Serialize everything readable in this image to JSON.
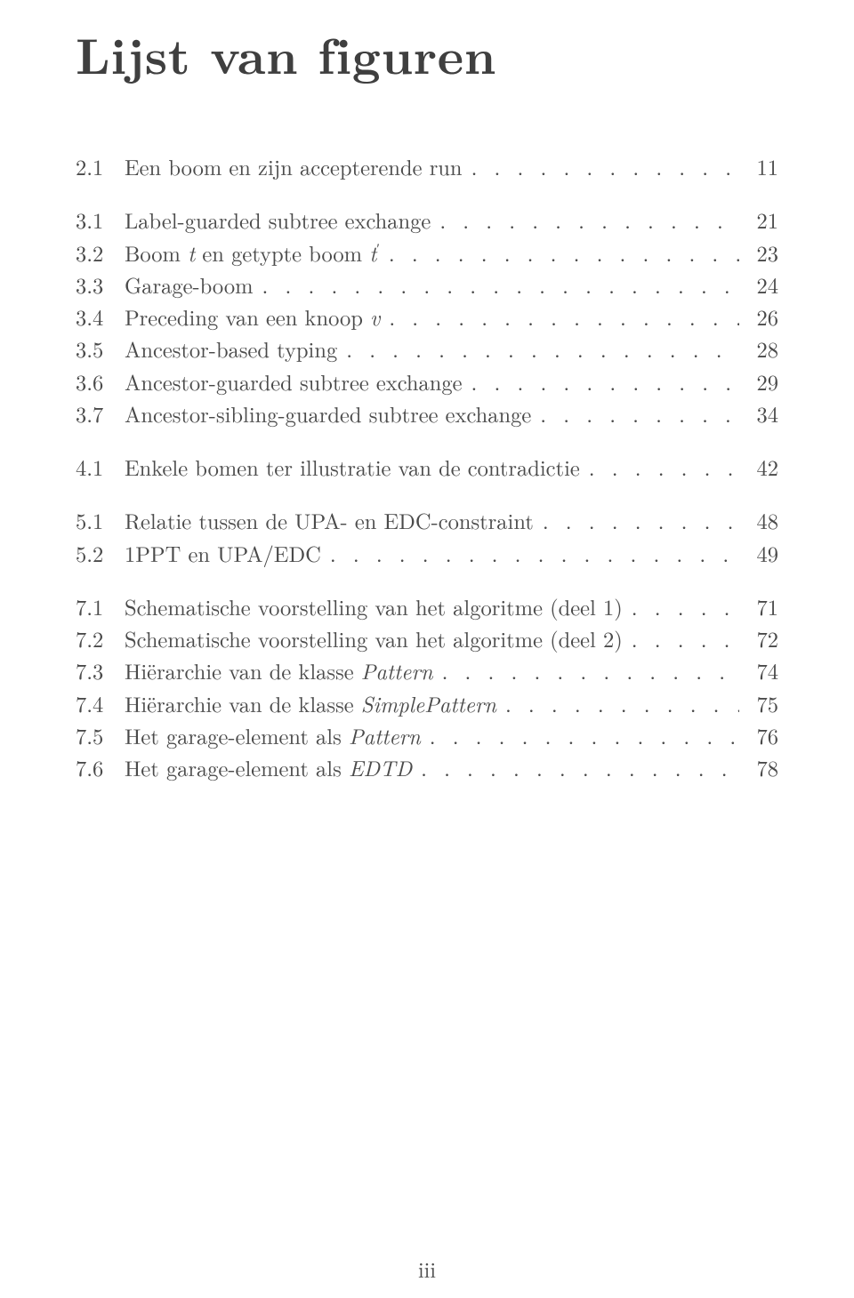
{
  "title": "Lijst van figuren",
  "page_number": "iii",
  "dot_fill": ". . . . . . . . . . . . . . . . . . . . . . . . . . . . . . . . . . . . . . . . . . . . . . . . . . . . . . . . . . . .",
  "groups": [
    [
      {
        "num": "2.1",
        "label_html": "Een boom en zijn accepterende run",
        "page": "11"
      }
    ],
    [
      {
        "num": "3.1",
        "label_html": "Label-guarded subtree exchange",
        "page": "21"
      },
      {
        "num": "3.2",
        "label_html": "Boom <span class=\"italic\">t</span> en getypte boom <span class=\"italic\">t</span><span class=\"sup\">′</span>",
        "page": "23"
      },
      {
        "num": "3.3",
        "label_html": "Garage-boom",
        "page": "24"
      },
      {
        "num": "3.4",
        "label_html": "Preceding van een knoop <span class=\"italic\">v</span>",
        "page": "26"
      },
      {
        "num": "3.5",
        "label_html": "Ancestor-based typing",
        "page": "28"
      },
      {
        "num": "3.6",
        "label_html": "Ancestor-guarded subtree exchange",
        "page": "29"
      },
      {
        "num": "3.7",
        "label_html": "Ancestor-sibling-guarded subtree exchange",
        "page": "34"
      }
    ],
    [
      {
        "num": "4.1",
        "label_html": "Enkele bomen ter illustratie van de contradictie",
        "page": "42"
      }
    ],
    [
      {
        "num": "5.1",
        "label_html": "Relatie tussen de UPA- en EDC-constraint",
        "page": "48"
      },
      {
        "num": "5.2",
        "label_html": "1PPT en UPA/EDC",
        "page": "49"
      }
    ],
    [
      {
        "num": "7.1",
        "label_html": "Schematische voorstelling van het algoritme (deel 1)",
        "page": "71"
      },
      {
        "num": "7.2",
        "label_html": "Schematische voorstelling van het algoritme (deel 2)",
        "page": "72"
      },
      {
        "num": "7.3",
        "label_html": "Hiërarchie van de klasse <span class=\"italic\">Pattern</span>",
        "page": "74"
      },
      {
        "num": "7.4",
        "label_html": "Hiërarchie van de klasse <span class=\"italic\">SimplePattern</span>",
        "page": "75"
      },
      {
        "num": "7.5",
        "label_html": "Het garage-element als <span class=\"italic\">Pattern</span>",
        "page": "76"
      },
      {
        "num": "7.6",
        "label_html": "Het garage-element als <span class=\"italic\">EDTD</span>",
        "page": "78"
      }
    ]
  ]
}
